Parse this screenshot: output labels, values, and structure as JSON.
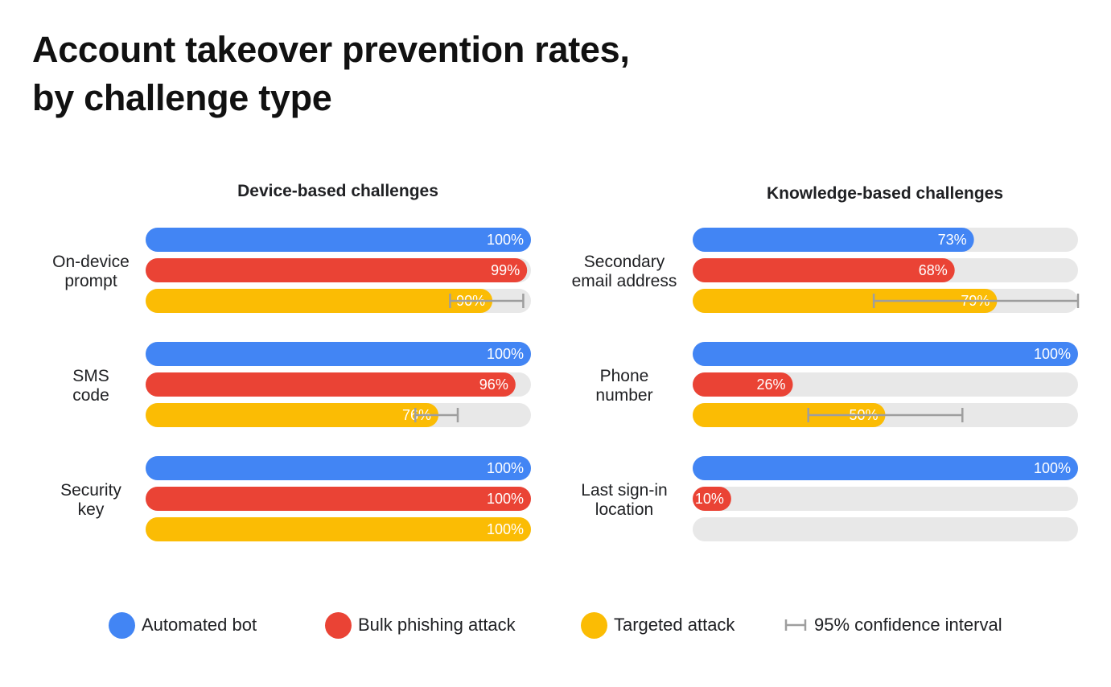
{
  "title": "Account takeover prevention rates,\nby challenge type",
  "colors": {
    "automated_bot": "#4285f4",
    "bulk_phishing": "#ea4335",
    "targeted": "#fbbc04",
    "track": "#e8e8e8",
    "ci": "#9e9e9e"
  },
  "legend": [
    {
      "label": "Automated bot",
      "color": "#4285f4",
      "kind": "dot"
    },
    {
      "label": "Bulk phishing attack",
      "color": "#ea4335",
      "kind": "dot"
    },
    {
      "label": "Targeted attack",
      "color": "#fbbc04",
      "kind": "dot"
    },
    {
      "label": "95% confidence interval",
      "color": "#9e9e9e",
      "kind": "ci"
    }
  ],
  "chart_data": {
    "type": "bar",
    "orientation": "horizontal",
    "value_range": [
      0,
      100
    ],
    "unit": "%",
    "series_names": [
      "Automated bot",
      "Bulk phishing attack",
      "Targeted attack"
    ],
    "panels": [
      {
        "title": "Device-based challenges",
        "groups": [
          {
            "label": "On-device prompt",
            "label_lines": [
              "On-device",
              "prompt"
            ],
            "bars": [
              {
                "series": "Automated bot",
                "value": 100,
                "label": "100%"
              },
              {
                "series": "Bulk phishing attack",
                "value": 99,
                "label": "99%"
              },
              {
                "series": "Targeted attack",
                "value": 90,
                "label": "90%",
                "ci": [
                  79,
                  98
                ]
              }
            ]
          },
          {
            "label": "SMS code",
            "label_lines": [
              "SMS",
              "code"
            ],
            "bars": [
              {
                "series": "Automated bot",
                "value": 100,
                "label": "100%"
              },
              {
                "series": "Bulk phishing attack",
                "value": 96,
                "label": "96%"
              },
              {
                "series": "Targeted attack",
                "value": 76,
                "label": "76%",
                "ci": [
                  70,
                  81
                ]
              }
            ]
          },
          {
            "label": "Security key",
            "label_lines": [
              "Security",
              "key"
            ],
            "bars": [
              {
                "series": "Automated bot",
                "value": 100,
                "label": "100%"
              },
              {
                "series": "Bulk phishing attack",
                "value": 100,
                "label": "100%"
              },
              {
                "series": "Targeted attack",
                "value": 100,
                "label": "100%"
              }
            ]
          }
        ]
      },
      {
        "title": "Knowledge-based challenges",
        "groups": [
          {
            "label": "Secondary email address",
            "label_lines": [
              "Secondary",
              "email address"
            ],
            "bars": [
              {
                "series": "Automated bot",
                "value": 73,
                "label": "73%"
              },
              {
                "series": "Bulk phishing attack",
                "value": 68,
                "label": "68%"
              },
              {
                "series": "Targeted attack",
                "value": 79,
                "label": "79%",
                "ci": [
                  47,
                  100
                ]
              }
            ]
          },
          {
            "label": "Phone number",
            "label_lines": [
              "Phone",
              "number"
            ],
            "bars": [
              {
                "series": "Automated bot",
                "value": 100,
                "label": "100%"
              },
              {
                "series": "Bulk phishing attack",
                "value": 26,
                "label": "26%"
              },
              {
                "series": "Targeted attack",
                "value": 50,
                "label": "50%",
                "ci": [
                  30,
                  70
                ]
              }
            ]
          },
          {
            "label": "Last sign-in location",
            "label_lines": [
              "Last sign-in",
              "location"
            ],
            "bars": [
              {
                "series": "Automated bot",
                "value": 100,
                "label": "100%"
              },
              {
                "series": "Bulk phishing attack",
                "value": 10,
                "label": "10%"
              },
              {
                "series": "Targeted attack",
                "value": 0,
                "label": ""
              }
            ]
          }
        ]
      }
    ]
  }
}
